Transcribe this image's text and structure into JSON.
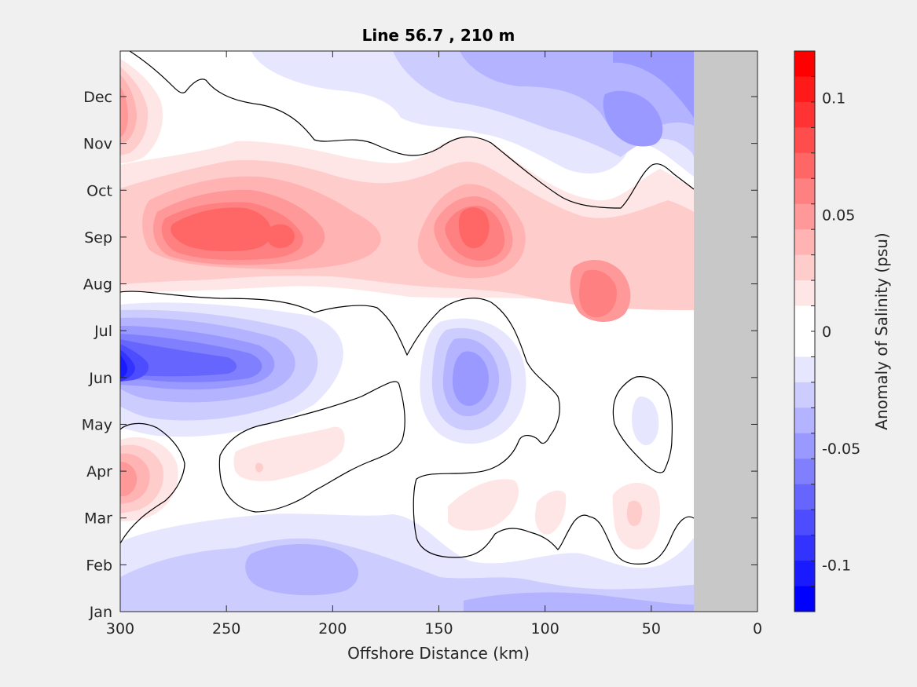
{
  "chart_data": {
    "type": "heatmap",
    "subtype": "filled-contour",
    "title": "Line 56.7 , 210 m",
    "xlabel": "Offshore Distance (km)",
    "ylabel": "",
    "x_axis": {
      "xlim": [
        300,
        0
      ],
      "reversed": true,
      "ticks": [
        300,
        250,
        200,
        150,
        100,
        50,
        0
      ],
      "tick_labels": [
        "300",
        "250",
        "200",
        "150",
        "100",
        "50",
        "0"
      ]
    },
    "y_axis": {
      "tick_labels": [
        "Jan",
        "Feb",
        "Mar",
        "Apr",
        "May",
        "Jun",
        "Jul",
        "Aug",
        "Sep",
        "Oct",
        "Nov",
        "Dec"
      ]
    },
    "no_data_region": {
      "x_from_km": 30,
      "x_to_km": 0,
      "color": "#c8c8c8"
    },
    "colorbar": {
      "label": "Anomaly of Salinity (psu)",
      "limits": [
        -0.12,
        0.12
      ],
      "step": 0.01,
      "ticks": [
        0.1,
        0.05,
        0,
        -0.05,
        -0.1
      ],
      "tick_labels": [
        "0.1",
        "0.05",
        "0",
        "-0.05",
        "-0.1"
      ],
      "levels_top_to_bottom": [
        "#ff0000",
        "#ff1a1a",
        "#ff3333",
        "#ff4d4d",
        "#ff6666",
        "#ff8080",
        "#ff9999",
        "#ffb3b3",
        "#ffcccc",
        "#ffe6e6",
        "#ffffff",
        "#ffffff",
        "#e6e6ff",
        "#ccccff",
        "#b3b3ff",
        "#9999ff",
        "#8080ff",
        "#6666ff",
        "#4d4dff",
        "#3333ff",
        "#1a1aff",
        "#0000ff"
      ]
    },
    "features": [
      {
        "month": "Jun",
        "x_km": 300,
        "anomaly": -0.09
      },
      {
        "month": "Jun",
        "x_km": 250,
        "anomaly": -0.06
      },
      {
        "month": "Jun",
        "x_km": 135,
        "anomaly": -0.05
      },
      {
        "month": "May",
        "x_km": 50,
        "anomaly": -0.01
      },
      {
        "month": "Feb",
        "x_km": 220,
        "anomaly": -0.03
      },
      {
        "month": "Feb",
        "x_km": 140,
        "anomaly": -0.02
      },
      {
        "month": "Dec",
        "x_km": 100,
        "anomaly": -0.03
      },
      {
        "month": "Dec",
        "x_km": 60,
        "anomaly": -0.04
      },
      {
        "month": "Apr",
        "x_km": 300,
        "anomaly": 0.05
      },
      {
        "month": "Apr",
        "x_km": 230,
        "anomaly": 0.02
      },
      {
        "month": "Dec",
        "x_km": 300,
        "anomaly": 0.04
      },
      {
        "month": "Sep",
        "x_km": 260,
        "anomaly": 0.07
      },
      {
        "month": "Sep",
        "x_km": 225,
        "anomaly": 0.07
      },
      {
        "month": "Sep",
        "x_km": 133,
        "anomaly": 0.07
      },
      {
        "month": "Aug",
        "x_km": 70,
        "anomaly": 0.05
      },
      {
        "month": "Aug",
        "x_km": 40,
        "anomaly": 0.03
      },
      {
        "month": "Mar",
        "x_km": 125,
        "anomaly": 0.01
      },
      {
        "month": "Mar",
        "x_km": 55,
        "anomaly": 0.02
      }
    ]
  }
}
